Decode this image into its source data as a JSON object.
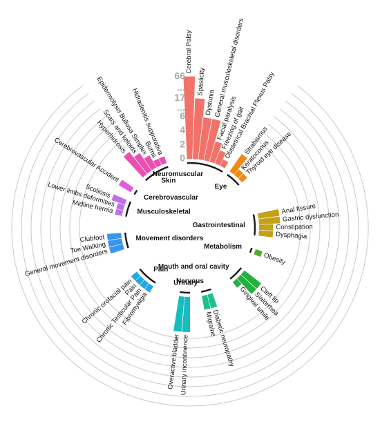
{
  "chart_data": {
    "type": "circular-bar",
    "y_ticks": [
      "0",
      "2",
      "4",
      "6",
      "...",
      "17",
      "...",
      "66"
    ],
    "y_tick_values": [
      0,
      2,
      4,
      6,
      7.2,
      8.6,
      10,
      11.7
    ],
    "groups": [
      {
        "name": "Neuromuscular",
        "color": "#f2726a",
        "bars": [
          {
            "label": "Cerebral Palsy",
            "value": 66
          },
          {
            "label": "Spasticity",
            "value": 17
          },
          {
            "label": "Dystonia",
            "value": 6
          },
          {
            "label": "General musculoskeletal disorders",
            "value": 6
          },
          {
            "label": "Facial paralysis",
            "value": 3
          },
          {
            "label": "Freezing of gait",
            "value": 2
          },
          {
            "label": "Obstetrical Brachial Plexus Palsy",
            "value": 1
          }
        ]
      },
      {
        "name": "Eye",
        "color": "#ee8b14",
        "bars": [
          {
            "label": "Strabismus",
            "value": 3
          },
          {
            "label": "Keratoconus",
            "value": 1
          },
          {
            "label": "Thyroid eye disease",
            "value": 1
          }
        ]
      },
      {
        "name": "Gastrointestinal",
        "color": "#c3a21a",
        "bars": [
          {
            "label": "Anal fissure",
            "value": 3
          },
          {
            "label": "Gastric dysfunction",
            "value": 3
          },
          {
            "label": "Constipation",
            "value": 2
          },
          {
            "label": "Dysphagia",
            "value": 2
          }
        ]
      },
      {
        "name": "Metabolism",
        "color": "#52a828",
        "bars": [
          {
            "label": "Obesity",
            "value": 1
          }
        ]
      },
      {
        "name": "Mouth and oral cavity",
        "color": "#22b040",
        "bars": [
          {
            "label": "Cleft lip",
            "value": 3
          },
          {
            "label": "Sialorrhea",
            "value": 3
          },
          {
            "label": "Gingival smile",
            "value": 1
          }
        ]
      },
      {
        "name": "Nervous",
        "color": "#1fc088",
        "bars": [
          {
            "label": "Diabetic neuropathy",
            "value": 2
          },
          {
            "label": "Migraine",
            "value": 2
          }
        ]
      },
      {
        "name": "Urinary",
        "color": "#16bcc0",
        "bars": [
          {
            "label": "Urinary incontinence",
            "value": 5
          },
          {
            "label": "Overactive bladder",
            "value": 5
          }
        ]
      },
      {
        "name": "Pain",
        "color": "#21a6e6",
        "bars": [
          {
            "label": "Fibromyalgia",
            "value": 1
          },
          {
            "label": "Chronic Testicular Pain",
            "value": 1
          },
          {
            "label": "Pain",
            "value": 1
          },
          {
            "label": "Chronic orofacial pain",
            "value": 1
          }
        ]
      },
      {
        "name": "Movement disorders",
        "color": "#3994ee",
        "bars": [
          {
            "label": "General movement disorders",
            "value": 2
          },
          {
            "label": "Toe Walking",
            "value": 2
          },
          {
            "label": "Clubfoot",
            "value": 2
          }
        ]
      },
      {
        "name": "Musculoskeletal",
        "color": "#c070e8",
        "bars": [
          {
            "label": "Midline hernia",
            "value": 1
          },
          {
            "label": "Lower limbs deformities",
            "value": 1
          },
          {
            "label": "Scoliosis",
            "value": 2
          }
        ]
      },
      {
        "name": "Cerebrovascular",
        "color": "#e65ae0",
        "bars": [
          {
            "label": "Cerebrovascular Accident",
            "value": 2
          }
        ]
      },
      {
        "name": "Skin",
        "color": "#ea4fb0",
        "bars": [
          {
            "label": "Hyperhidrosis",
            "value": 4
          },
          {
            "label": "Scars and keloids",
            "value": 3
          },
          {
            "label": "Epidermolysis Bullosa Simplex",
            "value": 2
          },
          {
            "label": "Burns",
            "value": 1
          },
          {
            "label": "Hidradenitis suppurativa",
            "value": 1
          }
        ]
      }
    ]
  }
}
